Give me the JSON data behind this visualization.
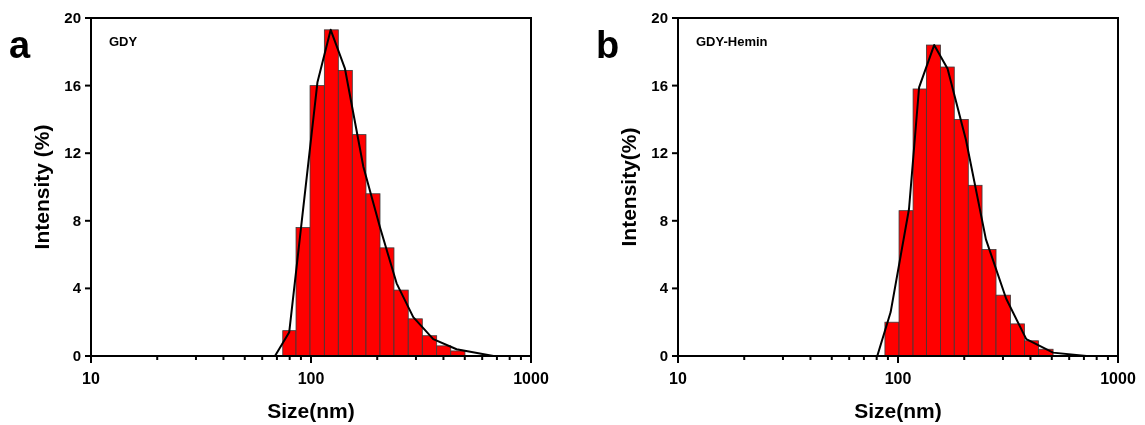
{
  "chart_data": [
    {
      "type": "histogram",
      "title": "GDY",
      "xlabel": "Size(nm)",
      "ylabel": "Intensity (%)",
      "annotations": [
        "a"
      ],
      "log": "x",
      "bins": [
        74.4,
        85.5,
        99.0,
        115.0,
        133.1,
        154.1,
        177.8,
        205.9,
        238.3,
        276.7,
        320.6,
        372.6,
        431.7,
        501
      ],
      "values": [
        1.5,
        7.6,
        16.0,
        19.3,
        16.9,
        13.1,
        9.6,
        6.4,
        3.9,
        2.2,
        1.2,
        0.6,
        0.3
      ],
      "color": "#ff0000",
      "series": [
        {
          "type": "line",
          "color": "#000000",
          "x": [
            68.6,
            79.6,
            107,
            122.9,
            142.7,
            173,
            206,
            245,
            291.6,
            359.5,
            459,
            675
          ],
          "values": [
            0,
            1.4,
            16.2,
            19.3,
            17.0,
            11.2,
            7.6,
            4.3,
            2.3,
            1.0,
            0.4,
            0
          ]
        }
      ],
      "xlim": [
        10,
        1000
      ],
      "ylim": [
        0,
        20
      ],
      "xticks": [
        10,
        {
          "value": 20,
          "label": null
        },
        {
          "value": 30,
          "label": null
        },
        {
          "value": 40,
          "label": null
        },
        {
          "value": 50,
          "label": null
        },
        {
          "value": 60,
          "label": null
        },
        {
          "value": 70,
          "label": null
        },
        {
          "value": 80,
          "label": null
        },
        {
          "value": 90,
          "label": null
        },
        100,
        {
          "value": 200,
          "label": null
        },
        {
          "value": 300,
          "label": null
        },
        {
          "value": 400,
          "label": null
        },
        {
          "value": 500,
          "label": null
        },
        {
          "value": 600,
          "label": null
        },
        {
          "value": 700,
          "label": null
        },
        {
          "value": 800,
          "label": null
        },
        {
          "value": 900,
          "label": null
        },
        1000
      ],
      "yticks": [
        0,
        4,
        8,
        12,
        16,
        20
      ]
    },
    {
      "type": "histogram",
      "title": "GDY-Hemin",
      "xlabel": "Size(nm)",
      "ylabel": "Intensity(%)",
      "annotations": [
        "b"
      ],
      "log": "x",
      "bins": [
        87.2,
        101.1,
        117.1,
        134.6,
        156,
        180.2,
        208.7,
        241,
        279,
        324.6,
        375.6,
        435.6,
        506.8
      ],
      "values": [
        2.0,
        8.6,
        15.8,
        18.4,
        17.1,
        14.0,
        10.1,
        6.3,
        3.6,
        1.9,
        0.9,
        0.4
      ],
      "color": "#ff0000",
      "series": [
        {
          "type": "line",
          "color": "#000000",
          "x": [
            80.5,
            92.6,
            112.2,
            124.7,
            146,
            168,
            203.6,
            251,
            310,
            383,
            507,
            719
          ],
          "values": [
            0,
            2.6,
            8.7,
            15.9,
            18.4,
            17.0,
            12.8,
            6.9,
            3.4,
            1.0,
            0.2,
            0
          ]
        }
      ],
      "xlim": [
        10,
        1000
      ],
      "ylim": [
        0,
        20
      ],
      "xticks": [
        10,
        {
          "value": 20,
          "label": null
        },
        {
          "value": 30,
          "label": null
        },
        {
          "value": 40,
          "label": null
        },
        {
          "value": 50,
          "label": null
        },
        {
          "value": 60,
          "label": null
        },
        {
          "value": 70,
          "label": null
        },
        {
          "value": 80,
          "label": null
        },
        {
          "value": 90,
          "label": null
        },
        100,
        {
          "value": 200,
          "label": null
        },
        {
          "value": 300,
          "label": null
        },
        {
          "value": 400,
          "label": null
        },
        {
          "value": 500,
          "label": null
        },
        {
          "value": 600,
          "label": null
        },
        {
          "value": 700,
          "label": null
        },
        {
          "value": 800,
          "label": null
        },
        {
          "value": 900,
          "label": null
        },
        1000
      ],
      "yticks": [
        0,
        4,
        8,
        12,
        16,
        20
      ]
    }
  ]
}
